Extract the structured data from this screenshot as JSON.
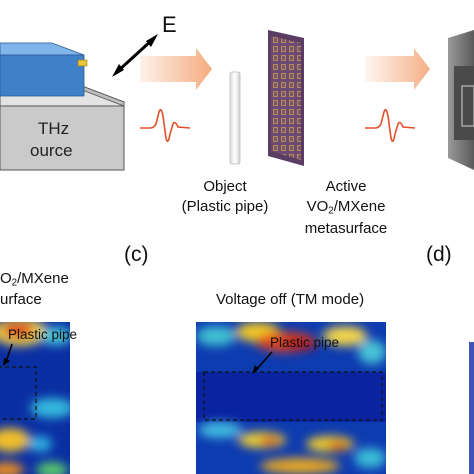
{
  "figure": {
    "field_label": "E",
    "source_label_line1": "THz",
    "source_label_line2": "ource",
    "object_label_line1": "Object",
    "object_label_line2": "(Plastic pipe)",
    "metasurface_label_line1": "Active",
    "metasurface_label_line2_prefix": "VO",
    "metasurface_label_line2_sub": "2",
    "metasurface_label_line2_suffix": "/MXene",
    "metasurface_label_line3": "metasurface",
    "panel_c_label": "(c)",
    "panel_d_label": "(d)",
    "left_partial_title_line1_prefix": "O",
    "left_partial_title_line1_sub": "2",
    "left_partial_title_line1_suffix": "/MXene",
    "left_partial_title_line2": "urface",
    "center_title": "Voltage off (TM mode)",
    "left_pipe_annotation": "Plastic pipe",
    "center_pipe_annotation": "Plastic pipe"
  },
  "colors": {
    "source_box_top": "#e2e2e2",
    "source_box_front": "#c8c8c8",
    "emitter_blue": "#3d7fc6",
    "beam_orange": "#f4a777",
    "pulse_red": "#e0502a",
    "metasurface_base": "#6b4a73",
    "heatmap_blue": "#0a2d9e"
  }
}
